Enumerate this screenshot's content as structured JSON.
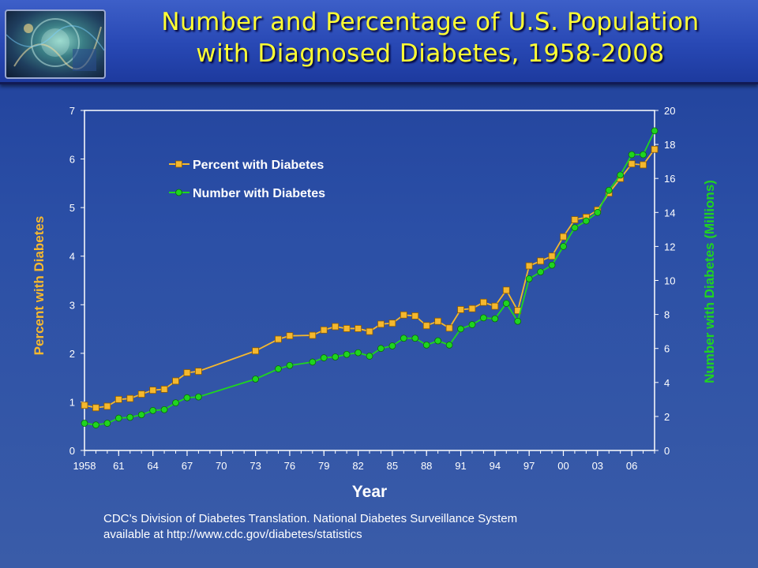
{
  "header": {
    "title_line1": "Number and Percentage of U.S. Population",
    "title_line2": "with Diagnosed Diabetes, 1958-2008"
  },
  "source": {
    "line1": "CDC’s Division of Diabetes Translation.  National Diabetes Surveillance System",
    "line2": "available at http://www.cdc.gov/diabetes/statistics"
  },
  "colors": {
    "percent_series": "#f5b82e",
    "number_series": "#1fd51f",
    "axis": "#ffffff"
  },
  "chart_data": {
    "type": "line",
    "title": "Number and Percentage of U.S. Population with Diagnosed Diabetes, 1958-2008",
    "xlabel": "Year",
    "ylabel": "Percent with Diabetes",
    "y2label": "Number with Diabetes (Millions)",
    "xlim": [
      1958,
      2008
    ],
    "ylim": [
      0,
      7
    ],
    "y2lim": [
      0,
      20
    ],
    "x_ticks": [
      1958,
      1961,
      1964,
      1967,
      1970,
      1973,
      1976,
      1979,
      1982,
      1985,
      1988,
      1991,
      1994,
      1997,
      2000,
      2003,
      2006
    ],
    "x_tick_labels": [
      "1958",
      "61",
      "64",
      "67",
      "70",
      "73",
      "76",
      "79",
      "82",
      "85",
      "88",
      "91",
      "94",
      "97",
      "00",
      "03",
      "06"
    ],
    "y_ticks": [
      0,
      1,
      2,
      3,
      4,
      5,
      6,
      7
    ],
    "y2_ticks": [
      0,
      2,
      4,
      6,
      8,
      10,
      12,
      14,
      16,
      18,
      20
    ],
    "legend": [
      "Percent with Diabetes",
      "Number with Diabetes"
    ],
    "legend_position": "top-left",
    "series": [
      {
        "name": "Percent with Diabetes",
        "axis": "left",
        "marker": "square",
        "x": [
          1958,
          1959,
          1960,
          1961,
          1962,
          1963,
          1964,
          1965,
          1966,
          1967,
          1968,
          1973,
          1975,
          1976,
          1978,
          1979,
          1980,
          1981,
          1982,
          1983,
          1984,
          1985,
          1986,
          1987,
          1988,
          1989,
          1990,
          1991,
          1992,
          1993,
          1994,
          1995,
          1996,
          1997,
          1998,
          1999,
          2000,
          2001,
          2002,
          2003,
          2004,
          2005,
          2006,
          2007,
          2008
        ],
        "values": [
          0.93,
          0.88,
          0.91,
          1.05,
          1.07,
          1.16,
          1.24,
          1.26,
          1.43,
          1.6,
          1.63,
          2.05,
          2.29,
          2.36,
          2.37,
          2.48,
          2.55,
          2.51,
          2.51,
          2.45,
          2.6,
          2.62,
          2.79,
          2.77,
          2.57,
          2.66,
          2.52,
          2.9,
          2.92,
          3.05,
          2.97,
          3.3,
          2.88,
          3.8,
          3.9,
          4.0,
          4.4,
          4.75,
          4.8,
          4.95,
          5.3,
          5.6,
          5.9,
          5.88,
          6.2
        ]
      },
      {
        "name": "Number with Diabetes",
        "axis": "right",
        "marker": "circle",
        "x": [
          1958,
          1959,
          1960,
          1961,
          1962,
          1963,
          1964,
          1965,
          1966,
          1967,
          1968,
          1973,
          1975,
          1976,
          1978,
          1979,
          1980,
          1981,
          1982,
          1983,
          1984,
          1985,
          1986,
          1987,
          1988,
          1989,
          1990,
          1991,
          1992,
          1993,
          1994,
          1995,
          1996,
          1997,
          1998,
          1999,
          2000,
          2001,
          2002,
          2003,
          2004,
          2005,
          2006,
          2007,
          2008
        ],
        "values": [
          1.6,
          1.5,
          1.6,
          1.9,
          1.95,
          2.1,
          2.35,
          2.4,
          2.8,
          3.1,
          3.15,
          4.2,
          4.8,
          5.0,
          5.2,
          5.45,
          5.5,
          5.65,
          5.75,
          5.55,
          6.0,
          6.15,
          6.6,
          6.6,
          6.2,
          6.45,
          6.2,
          7.15,
          7.4,
          7.8,
          7.75,
          8.65,
          7.6,
          10.1,
          10.5,
          10.9,
          12.0,
          13.1,
          13.5,
          14.0,
          15.3,
          16.2,
          17.4,
          17.4,
          18.8
        ]
      }
    ]
  }
}
